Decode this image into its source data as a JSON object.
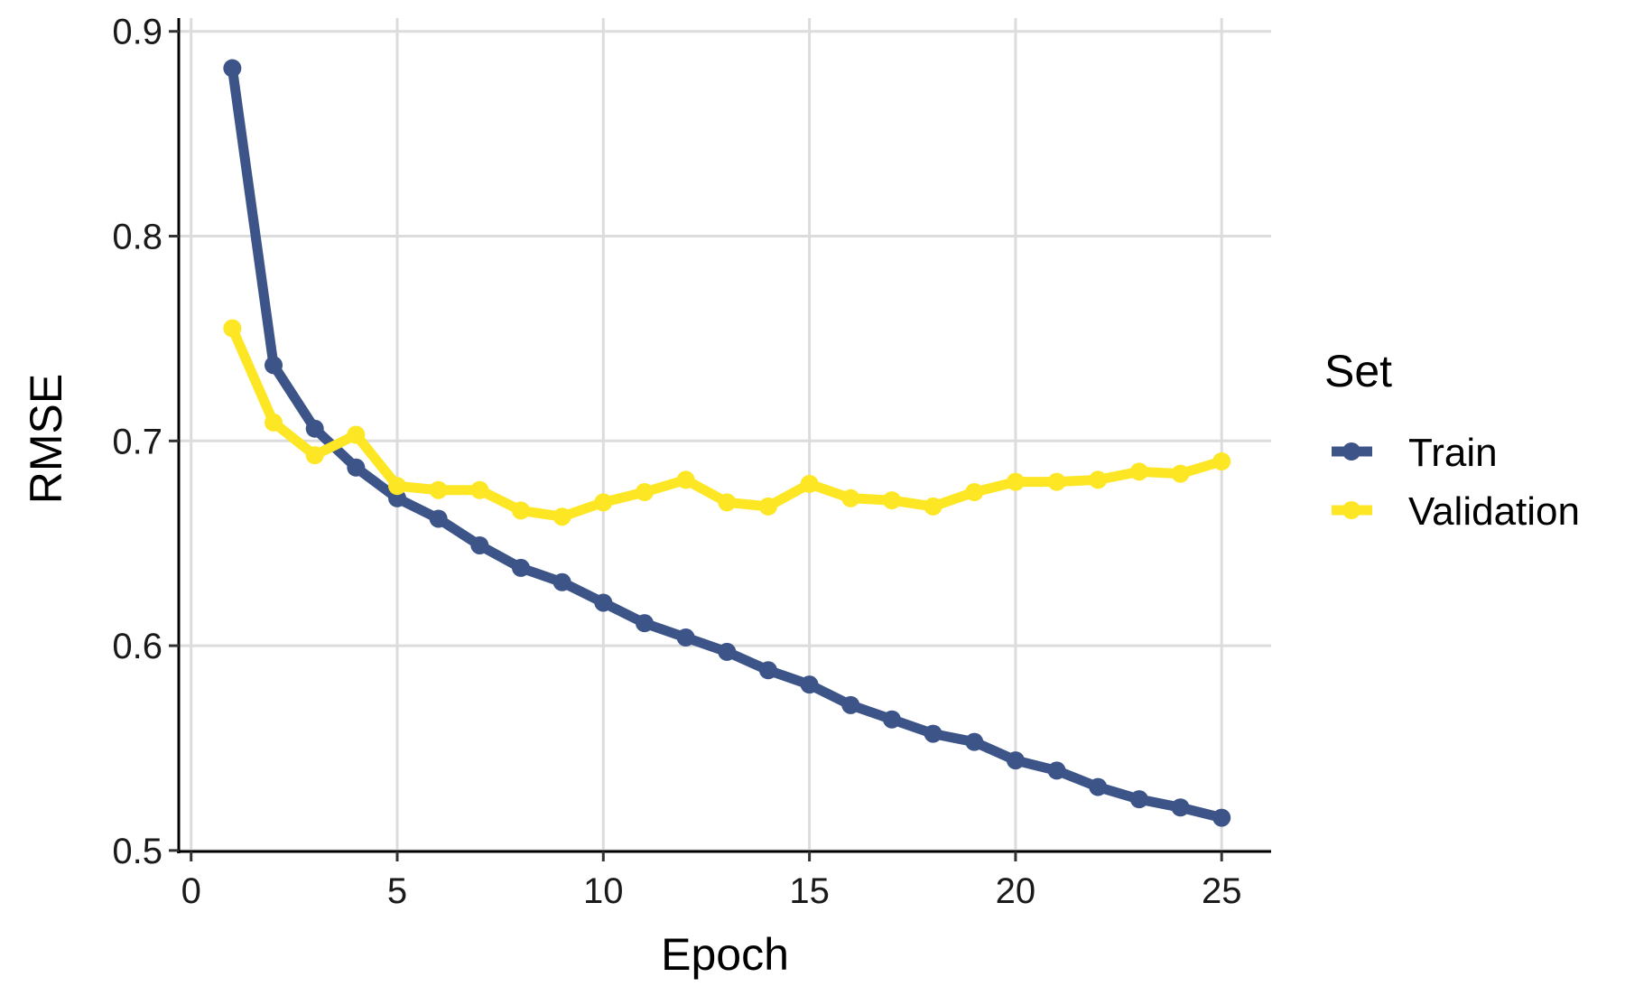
{
  "chart_data": {
    "type": "line",
    "title": "",
    "xlabel": "Epoch",
    "ylabel": "RMSE",
    "xlim": [
      -0.3,
      26.2
    ],
    "ylim": [
      0.4995,
      0.9065
    ],
    "x_ticks": [
      0,
      5,
      10,
      15,
      20,
      25
    ],
    "y_ticks": [
      0.5,
      0.6,
      0.7,
      0.8,
      0.9
    ],
    "x_tick_labels": [
      "0",
      "5",
      "10",
      "15",
      "20",
      "25"
    ],
    "y_tick_labels": [
      "0.5",
      "0.6",
      "0.7",
      "0.8",
      "0.9"
    ],
    "grid": true,
    "legend": {
      "title": "Set",
      "placement": "right"
    },
    "x": [
      1,
      2,
      3,
      4,
      5,
      6,
      7,
      8,
      9,
      10,
      11,
      12,
      13,
      14,
      15,
      16,
      17,
      18,
      19,
      20,
      21,
      22,
      23,
      24,
      25
    ],
    "series": [
      {
        "name": "Train",
        "color": "#3c5488",
        "values": [
          0.882,
          0.737,
          0.706,
          0.687,
          0.672,
          0.662,
          0.649,
          0.638,
          0.631,
          0.621,
          0.611,
          0.604,
          0.597,
          0.588,
          0.581,
          0.571,
          0.564,
          0.557,
          0.553,
          0.544,
          0.539,
          0.531,
          0.525,
          0.521,
          0.516
        ]
      },
      {
        "name": "Validation",
        "color": "#fde725",
        "values": [
          0.755,
          0.709,
          0.693,
          0.703,
          0.678,
          0.676,
          0.676,
          0.666,
          0.663,
          0.67,
          0.675,
          0.681,
          0.67,
          0.668,
          0.679,
          0.672,
          0.671,
          0.668,
          0.675,
          0.68,
          0.68,
          0.681,
          0.685,
          0.684,
          0.69
        ]
      }
    ]
  }
}
